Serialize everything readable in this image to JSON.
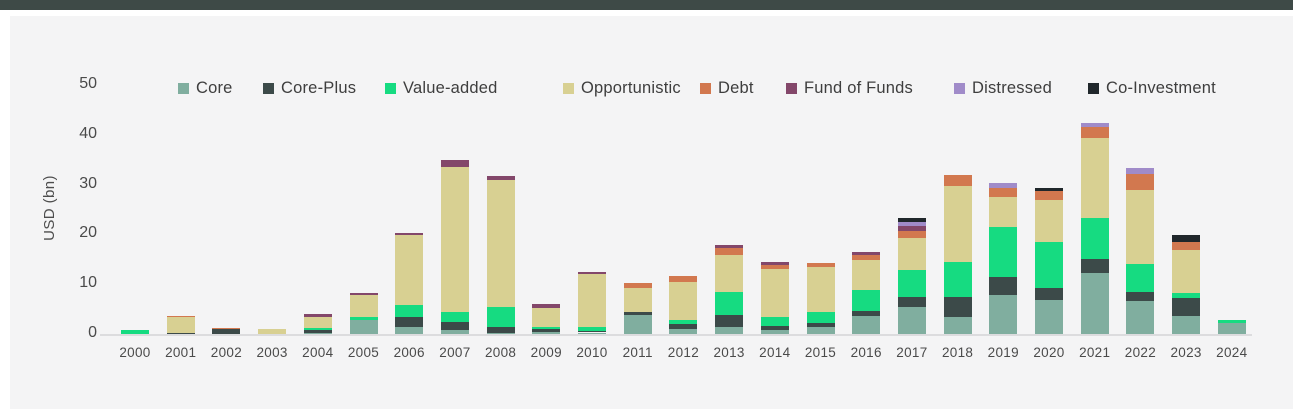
{
  "page": {
    "top_bar_color": "#3e4a47",
    "panel_background": "#f4f4f5",
    "axis_line_color": "#dcdcde"
  },
  "chart_data": {
    "type": "bar",
    "stacked": true,
    "title": "",
    "xlabel": "",
    "ylabel": "USD (bn)",
    "ylim": [
      0,
      50
    ],
    "yticks": [
      0,
      10,
      20,
      30,
      40,
      50
    ],
    "grid": false,
    "legend_position": "top",
    "categories": [
      "2000",
      "2001",
      "2002",
      "2003",
      "2004",
      "2005",
      "2006",
      "2007",
      "2008",
      "2009",
      "2010",
      "2011",
      "2012",
      "2013",
      "2014",
      "2015",
      "2016",
      "2017",
      "2018",
      "2019",
      "2020",
      "2021",
      "2022",
      "2023",
      "2024"
    ],
    "series": [
      {
        "name": "Core",
        "color": "#80ae9f",
        "values": [
          0,
          0,
          0,
          0,
          0.3,
          2.9,
          1.5,
          0.8,
          0.2,
          0.5,
          0.3,
          3.8,
          1.0,
          1.5,
          0.8,
          1.4,
          3.6,
          5.5,
          3.5,
          7.8,
          6.8,
          12.2,
          6.7,
          3.6,
          2.3
        ]
      },
      {
        "name": "Core-Plus",
        "color": "#3c4a49",
        "values": [
          0,
          0.3,
          1.05,
          0,
          0.6,
          0,
          2.0,
          1.7,
          1.3,
          0.5,
          0.3,
          0.55,
          0.95,
          2.3,
          0.8,
          0.9,
          1.1,
          2.0,
          4.0,
          3.7,
          2.5,
          2.8,
          1.8,
          3.6,
          0
        ]
      },
      {
        "name": "Value-added",
        "color": "#16db81",
        "values": [
          0.8,
          0,
          0,
          0,
          0.4,
          0.6,
          2.3,
          2.0,
          4.0,
          0.5,
          0.9,
          0,
          0.85,
          4.7,
          1.75,
          2.2,
          4.2,
          5.3,
          6.9,
          10.0,
          9.1,
          8.2,
          5.6,
          1.1,
          0.5
        ]
      },
      {
        "name": "Opportunistic",
        "color": "#d8d092",
        "values": [
          0,
          3.1,
          0,
          1.0,
          2.2,
          4.4,
          14.1,
          29.1,
          25.4,
          3.7,
          10.5,
          4.85,
          7.7,
          7.4,
          9.65,
          9.0,
          6.0,
          6.4,
          15.4,
          6.1,
          8.5,
          16.1,
          14.8,
          8.6,
          0
        ]
      },
      {
        "name": "Debt",
        "color": "#d2784f",
        "values": [
          0,
          0.25,
          0.2,
          0,
          0,
          0,
          0,
          0,
          0,
          0,
          0,
          1.0,
          1.2,
          1.3,
          0.9,
          0.8,
          0.9,
          1.5,
          2.1,
          1.7,
          1.8,
          2.3,
          3.3,
          1.6,
          0
        ]
      },
      {
        "name": "Fund of Funds",
        "color": "#83476a",
        "values": [
          0,
          0,
          0,
          0,
          0.5,
          0.3,
          0.4,
          1.3,
          0.9,
          0.8,
          0.5,
          0,
          0,
          0.6,
          0.6,
          0,
          0.6,
          1.0,
          0,
          0,
          0,
          0,
          0,
          0,
          0
        ]
      },
      {
        "name": "Distressed",
        "color": "#a08bc9",
        "values": [
          0,
          0,
          0,
          0,
          0,
          0,
          0,
          0,
          0,
          0,
          0,
          0,
          0,
          0,
          0,
          0,
          0,
          0.8,
          0,
          1.0,
          0,
          0.8,
          1.2,
          0,
          0
        ]
      },
      {
        "name": "Co-Investment",
        "color": "#20272b",
        "values": [
          0,
          0,
          0,
          0,
          0,
          0,
          0,
          0,
          0,
          0,
          0,
          0,
          0,
          0,
          0,
          0,
          0,
          0.7,
          0,
          0,
          0.6,
          0,
          0,
          1.4,
          0
        ]
      }
    ]
  }
}
